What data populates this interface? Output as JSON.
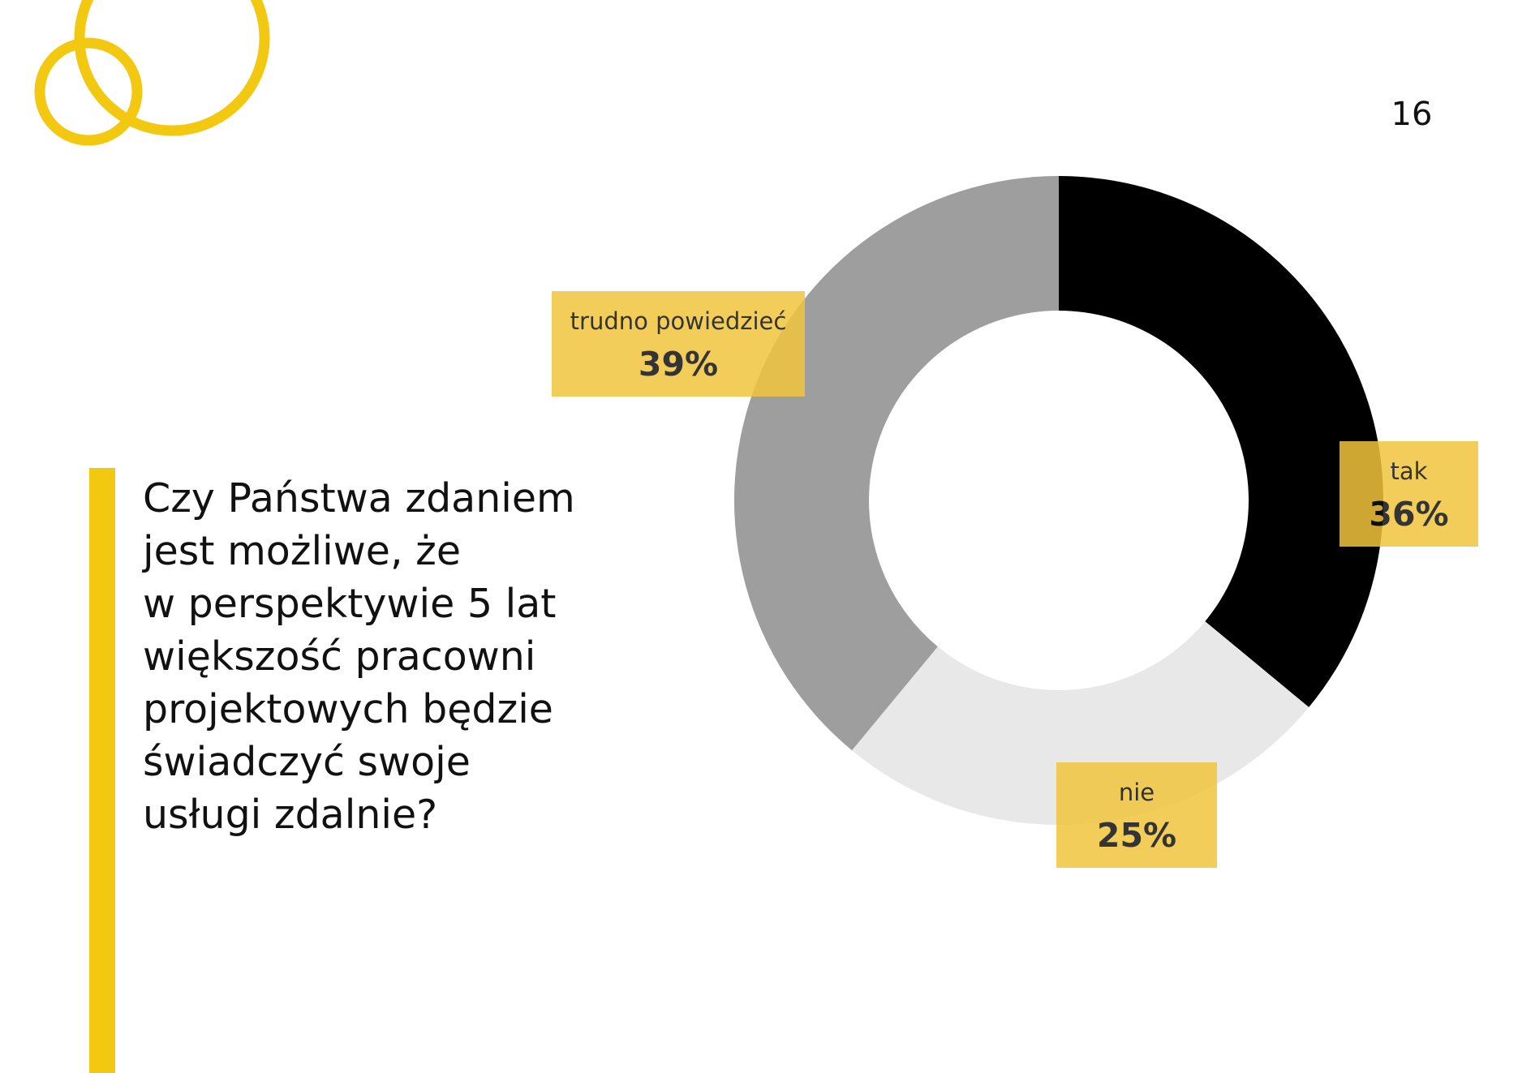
{
  "page": {
    "number": "16",
    "question": "Czy Państwa zdaniem\njest możliwe, że\nw perspektywie 5 lat\nwiększość pracowni\nprojektowych będzie\nświadczyć swoje\nusługi zdalnie?"
  },
  "colors": {
    "accent": "#f2c811",
    "label_bg": "#f2c53d",
    "slice_tak": "#000000",
    "slice_nie": "#e8e8e8",
    "slice_trudno": "#9e9e9e",
    "text": "#111111"
  },
  "chart_data": {
    "type": "pie",
    "donut": true,
    "title": "",
    "series": [
      {
        "values": [
          36,
          25,
          39
        ],
        "categories": [
          "tak",
          "nie",
          "trudno powiedzieć"
        ]
      }
    ],
    "labels": [
      {
        "name": "tak",
        "value_label": "36%"
      },
      {
        "name": "nie",
        "value_label": "25%"
      },
      {
        "name": "trudno powiedzieć",
        "value_label": "39%"
      }
    ],
    "legend": "none"
  }
}
